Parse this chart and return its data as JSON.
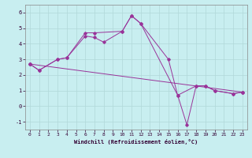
{
  "xlabel": "Windchill (Refroidissement éolien,°C)",
  "background_color": "#c8eef0",
  "grid_color": "#b0d8d8",
  "line_color": "#993399",
  "xlim": [
    -0.5,
    23.5
  ],
  "ylim": [
    -1.5,
    6.5
  ],
  "xticks": [
    0,
    1,
    2,
    3,
    4,
    5,
    6,
    7,
    8,
    9,
    10,
    11,
    12,
    13,
    14,
    15,
    16,
    17,
    18,
    19,
    20,
    21,
    22,
    23
  ],
  "yticks": [
    -1,
    0,
    1,
    2,
    3,
    4,
    5,
    6
  ],
  "curve1_x": [
    0,
    1,
    3,
    4,
    6,
    7,
    10,
    11,
    12,
    15,
    16,
    18,
    19,
    20,
    22,
    23
  ],
  "curve1_y": [
    2.7,
    2.3,
    3.0,
    3.1,
    4.7,
    4.7,
    4.8,
    5.8,
    5.3,
    3.0,
    0.7,
    1.3,
    1.3,
    1.0,
    0.8,
    0.9
  ],
  "curve2_x": [
    0,
    1,
    3,
    4,
    6,
    7,
    8,
    10,
    11,
    12,
    16,
    17,
    18,
    19,
    20,
    22,
    23
  ],
  "curve2_y": [
    2.7,
    2.3,
    3.0,
    3.1,
    4.5,
    4.4,
    4.1,
    4.8,
    5.8,
    5.3,
    0.7,
    -1.2,
    1.3,
    1.3,
    1.0,
    0.8,
    0.9
  ],
  "trend_x": [
    0,
    23
  ],
  "trend_y": [
    2.7,
    0.9
  ]
}
